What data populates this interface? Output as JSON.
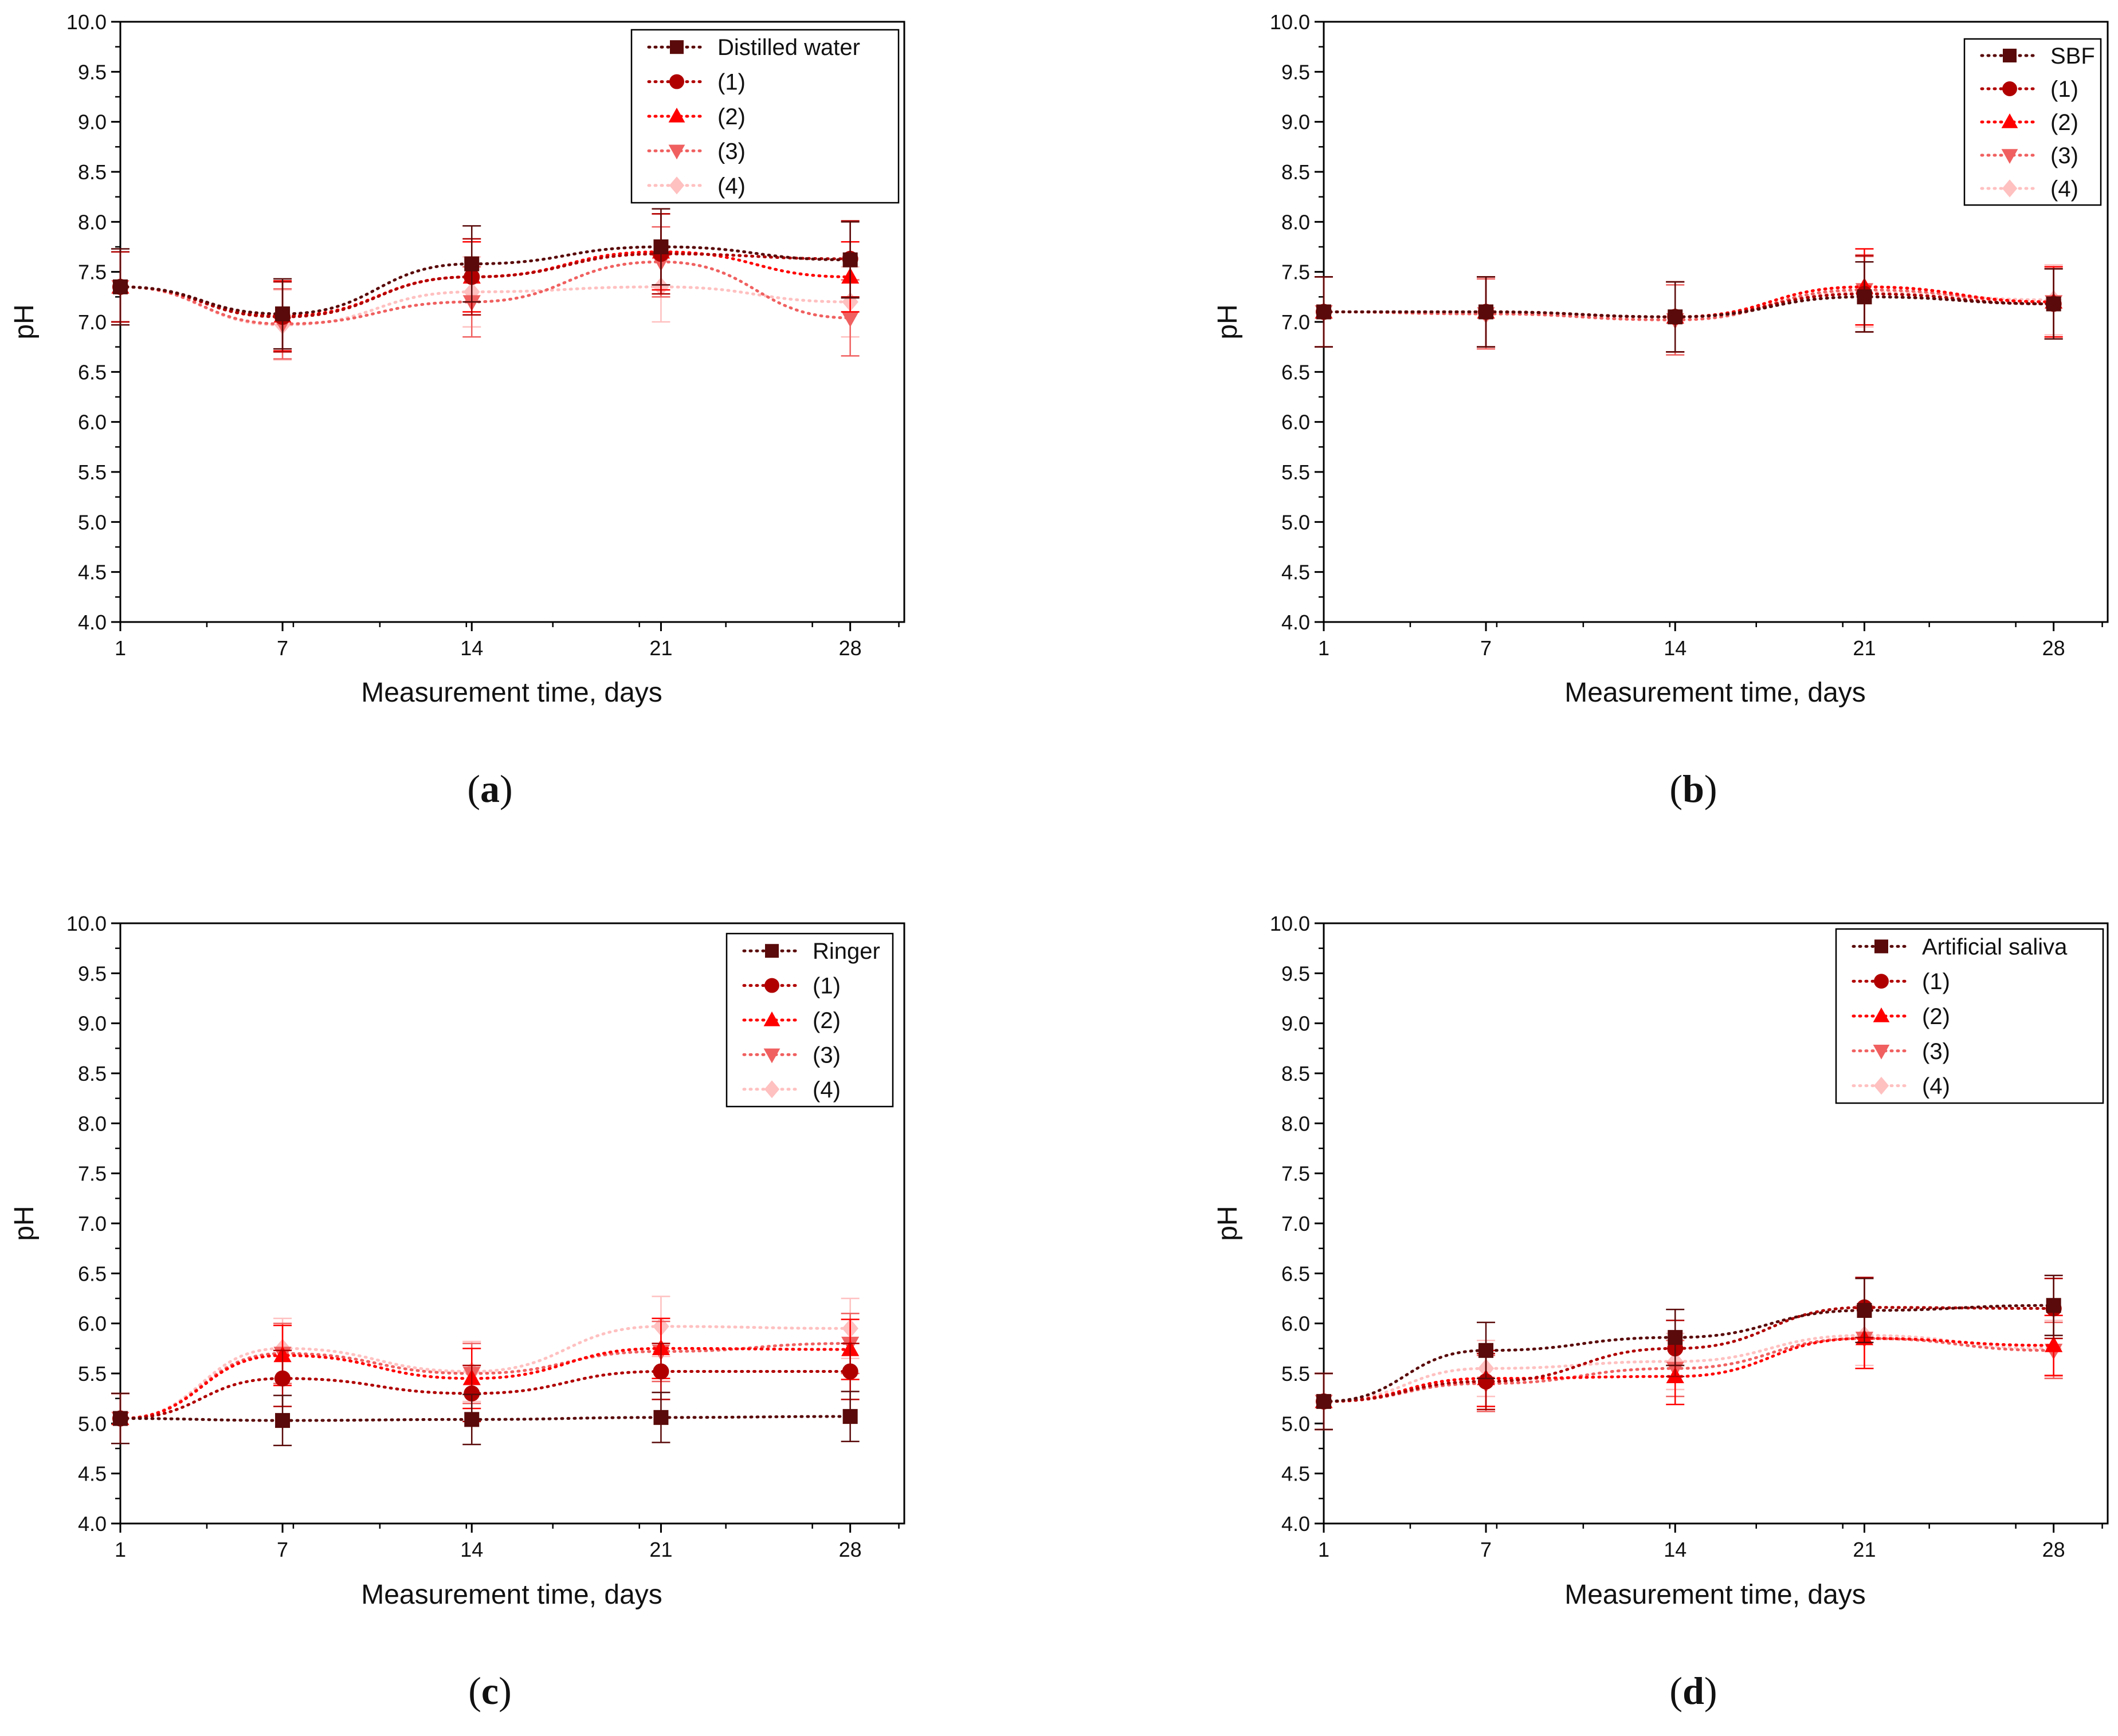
{
  "series_colors": [
    "#5a0a0a",
    "#b00000",
    "#ff0000",
    "#f06060",
    "#ffc0c0"
  ],
  "series_markers": [
    "square",
    "circle",
    "triangle-up",
    "triangle-down",
    "diamond"
  ],
  "chart_data": [
    {
      "type": "line",
      "panel_label": "(a)",
      "panel_letter": "a",
      "xlabel": "Measurement time, days",
      "ylabel": "pH",
      "xlim": [
        1,
        30
      ],
      "ylim": [
        4.0,
        10.0
      ],
      "xticks": [
        1,
        7,
        14,
        21,
        28
      ],
      "yticks": [
        4.0,
        4.5,
        5.0,
        5.5,
        6.0,
        6.5,
        7.0,
        7.5,
        8.0,
        8.5,
        9.0,
        9.5,
        10.0
      ],
      "x": [
        1,
        7,
        14,
        21,
        28
      ],
      "series": [
        {
          "name": "Distilled water",
          "values": [
            7.35,
            7.08,
            7.58,
            7.75,
            7.62
          ],
          "errors": [
            0.38,
            0.35,
            0.38,
            0.38,
            0.38
          ]
        },
        {
          "name": "(1)",
          "values": [
            7.35,
            7.05,
            7.45,
            7.68,
            7.63
          ],
          "errors": [
            0.35,
            0.35,
            0.38,
            0.4,
            0.38
          ]
        },
        {
          "name": "(2)",
          "values": [
            7.35,
            7.06,
            7.45,
            7.7,
            7.45
          ],
          "errors": [
            0.35,
            0.35,
            0.35,
            0.38,
            0.35
          ]
        },
        {
          "name": "(3)",
          "values": [
            7.35,
            6.98,
            7.2,
            7.6,
            7.04
          ],
          "errors": [
            0.35,
            0.35,
            0.35,
            0.35,
            0.38
          ]
        },
        {
          "name": "(4)",
          "values": [
            7.35,
            6.97,
            7.3,
            7.35,
            7.2
          ],
          "errors": [
            0.35,
            0.35,
            0.35,
            0.35,
            0.35
          ]
        }
      ]
    },
    {
      "type": "line",
      "panel_label": "(b)",
      "panel_letter": "b",
      "xlabel": "Measurement time, days",
      "ylabel": "pH",
      "xlim": [
        1,
        30
      ],
      "ylim": [
        4.0,
        10.0
      ],
      "xticks": [
        1,
        7,
        14,
        21,
        28
      ],
      "yticks": [
        4.0,
        4.5,
        5.0,
        5.5,
        6.0,
        6.5,
        7.0,
        7.5,
        8.0,
        8.5,
        9.0,
        9.5,
        10.0
      ],
      "x": [
        1,
        7,
        14,
        21,
        28
      ],
      "series": [
        {
          "name": "SBF",
          "values": [
            7.1,
            7.1,
            7.05,
            7.25,
            7.18
          ],
          "errors": [
            0.35,
            0.35,
            0.35,
            0.35,
            0.35
          ]
        },
        {
          "name": "(1)",
          "values": [
            7.1,
            7.1,
            7.05,
            7.28,
            7.18
          ],
          "errors": [
            0.35,
            0.35,
            0.35,
            0.38,
            0.35
          ]
        },
        {
          "name": "(2)",
          "values": [
            7.1,
            7.1,
            7.05,
            7.35,
            7.2
          ],
          "errors": [
            0.35,
            0.35,
            0.35,
            0.38,
            0.35
          ]
        },
        {
          "name": "(3)",
          "values": [
            7.1,
            7.08,
            7.02,
            7.32,
            7.2
          ],
          "errors": [
            0.35,
            0.35,
            0.35,
            0.35,
            0.35
          ]
        },
        {
          "name": "(4)",
          "values": [
            7.1,
            7.08,
            7.05,
            7.3,
            7.22
          ],
          "errors": [
            0.35,
            0.35,
            0.35,
            0.35,
            0.35
          ]
        }
      ]
    },
    {
      "type": "line",
      "panel_label": "(c)",
      "panel_letter": "c",
      "xlabel": "Measurement time, days",
      "ylabel": "pH",
      "xlim": [
        1,
        30
      ],
      "ylim": [
        4.0,
        10.0
      ],
      "xticks": [
        1,
        7,
        14,
        21,
        28
      ],
      "yticks": [
        4.0,
        4.5,
        5.0,
        5.5,
        6.0,
        6.5,
        7.0,
        7.5,
        8.0,
        8.5,
        9.0,
        9.5,
        10.0
      ],
      "x": [
        1,
        7,
        14,
        21,
        28
      ],
      "series": [
        {
          "name": "Ringer",
          "values": [
            5.05,
            5.03,
            5.04,
            5.06,
            5.07
          ],
          "errors": [
            0.25,
            0.25,
            0.25,
            0.25,
            0.25
          ]
        },
        {
          "name": "(1)",
          "values": [
            5.05,
            5.45,
            5.3,
            5.52,
            5.52
          ],
          "errors": [
            0.25,
            0.28,
            0.28,
            0.28,
            0.28
          ]
        },
        {
          "name": "(2)",
          "values": [
            5.05,
            5.68,
            5.45,
            5.75,
            5.74
          ],
          "errors": [
            0.25,
            0.3,
            0.3,
            0.3,
            0.3
          ]
        },
        {
          "name": "(3)",
          "values": [
            5.05,
            5.7,
            5.5,
            5.72,
            5.8
          ],
          "errors": [
            0.25,
            0.3,
            0.3,
            0.3,
            0.3
          ]
        },
        {
          "name": "(4)",
          "values": [
            5.05,
            5.75,
            5.52,
            5.97,
            5.95
          ],
          "errors": [
            0.25,
            0.3,
            0.3,
            0.3,
            0.3
          ]
        }
      ]
    },
    {
      "type": "line",
      "panel_label": "(d)",
      "panel_letter": "d",
      "xlabel": "Measurement time, days",
      "ylabel": "pH",
      "xlim": [
        1,
        30
      ],
      "ylim": [
        4.0,
        10.0
      ],
      "xticks": [
        1,
        7,
        14,
        21,
        28
      ],
      "yticks": [
        4.0,
        4.5,
        5.0,
        5.5,
        6.0,
        6.5,
        7.0,
        7.5,
        8.0,
        8.5,
        9.0,
        9.5,
        10.0
      ],
      "x": [
        1,
        7,
        14,
        21,
        28
      ],
      "series": [
        {
          "name": "Artificial saliva",
          "values": [
            5.22,
            5.73,
            5.86,
            6.13,
            6.18
          ],
          "errors": [
            0.28,
            0.28,
            0.28,
            0.32,
            0.3
          ]
        },
        {
          "name": "(1)",
          "values": [
            5.22,
            5.42,
            5.75,
            6.16,
            6.15
          ],
          "errors": [
            0.28,
            0.28,
            0.28,
            0.3,
            0.3
          ]
        },
        {
          "name": "(2)",
          "values": [
            5.22,
            5.45,
            5.47,
            5.85,
            5.78
          ],
          "errors": [
            0.28,
            0.28,
            0.28,
            0.3,
            0.3
          ]
        },
        {
          "name": "(3)",
          "values": [
            5.22,
            5.4,
            5.55,
            5.85,
            5.73
          ],
          "errors": [
            0.28,
            0.28,
            0.28,
            0.3,
            0.28
          ]
        },
        {
          "name": "(4)",
          "values": [
            5.22,
            5.55,
            5.62,
            5.88,
            5.75
          ],
          "errors": [
            0.28,
            0.28,
            0.28,
            0.3,
            0.28
          ]
        }
      ]
    }
  ]
}
